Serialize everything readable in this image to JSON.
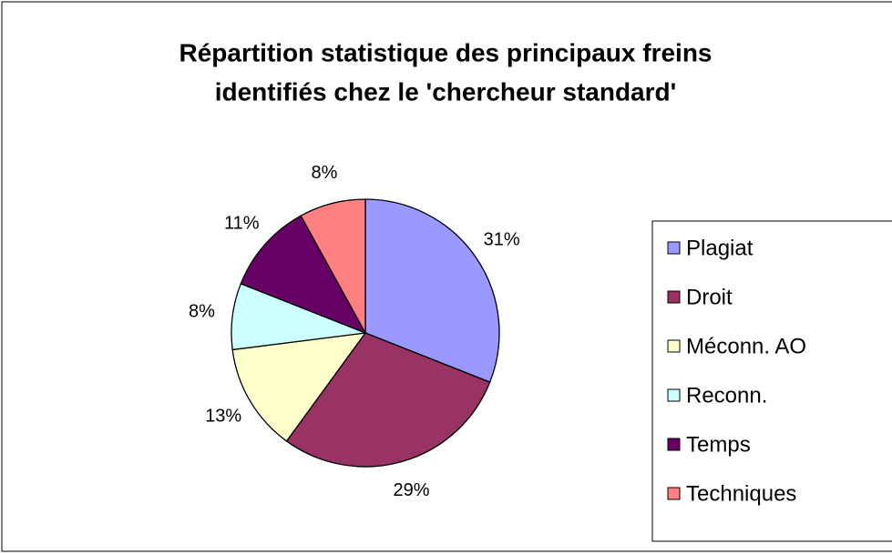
{
  "chart_data": {
    "type": "pie",
    "title": [
      "Répartition statistique des principaux freins",
      "identifiés chez le 'chercheur standard'"
    ],
    "categories": [
      "Plagiat",
      "Droit",
      "Méconn. AO",
      "Reconn.",
      "Temps",
      "Techniques"
    ],
    "values": [
      31,
      29,
      13,
      8,
      11,
      8
    ],
    "value_labels": [
      "31%",
      "29%",
      "13%",
      "8%",
      "11%",
      "8%"
    ],
    "colors": [
      "#9999ff",
      "#993366",
      "#ffffcc",
      "#ccffff",
      "#660066",
      "#ff8080"
    ],
    "legend": "right"
  }
}
